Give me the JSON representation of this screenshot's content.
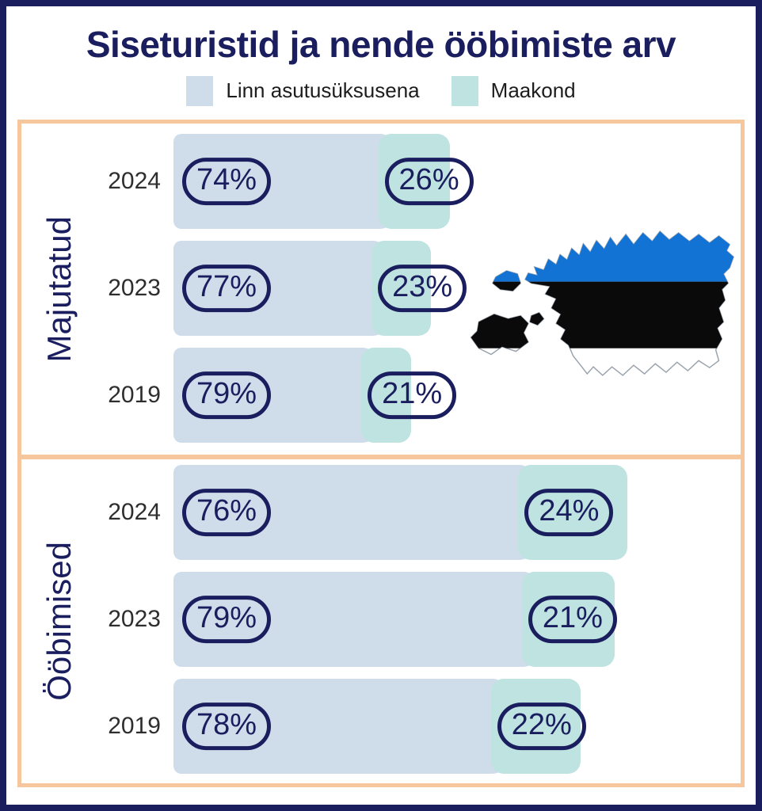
{
  "title": "Siseturistid ja nende ööbimiste arv",
  "legend": {
    "items": [
      {
        "label": "Linn asutusüksusena",
        "color": "#CFDDEA"
      },
      {
        "label": "Maakond",
        "color": "#BEE3E0"
      }
    ]
  },
  "colors": {
    "navy": "#1A1E5E",
    "city_bar": "#CFDDEA",
    "county_bar": "#BEE3E0",
    "panel_border": "#F6C69C",
    "year_text": "#2e2e2e"
  },
  "chart_data": {
    "type": "bar",
    "orientation": "horizontal",
    "stacked": true,
    "title": "Siseturistid ja nende ööbimiste arv",
    "series_names": [
      "Linn asutusüksusena",
      "Maakond"
    ],
    "value_unit": "%",
    "note": "Bar total length is proportional to absolute volume; relative_total is normalized to the largest bar (Ööbimised 2024 = 1.0).",
    "groups": [
      {
        "label": "Majutatud",
        "rows": [
          {
            "year": "2024",
            "city_pct": 74,
            "county_pct": 26,
            "relative_total": 0.61
          },
          {
            "year": "2023",
            "city_pct": 77,
            "county_pct": 23,
            "relative_total": 0.567
          },
          {
            "year": "2019",
            "city_pct": 79,
            "county_pct": 21,
            "relative_total": 0.524
          }
        ]
      },
      {
        "label": "Ööbimised",
        "rows": [
          {
            "year": "2024",
            "city_pct": 76,
            "county_pct": 24,
            "relative_total": 1.0
          },
          {
            "year": "2023",
            "city_pct": 79,
            "county_pct": 21,
            "relative_total": 0.972
          },
          {
            "year": "2019",
            "city_pct": 78,
            "county_pct": 22,
            "relative_total": 0.897
          }
        ]
      }
    ],
    "legend_position": "top",
    "grid": false
  },
  "map": {
    "name": "estonia-flag-map",
    "flag_colors": {
      "blue": "#1273D4",
      "black": "#0A0A0A",
      "white": "#FFFFFF"
    },
    "outline_color": "#9aa3ad"
  }
}
